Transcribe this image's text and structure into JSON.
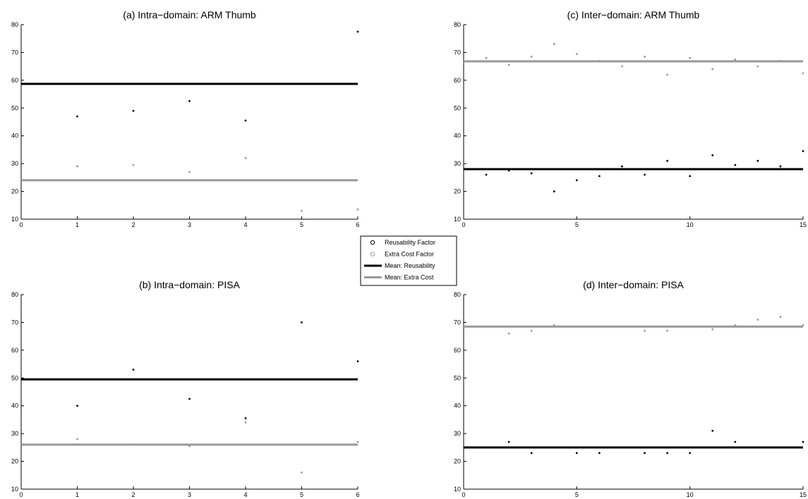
{
  "colors": {
    "reusability": "#000000",
    "extra_cost": "#999999",
    "axis": "#000000",
    "background": "#ffffff"
  },
  "chart_data": [
    {
      "type": "scatter",
      "panel": "a",
      "title": "(a) Intra−domain: ARM Thumb",
      "xlim": [
        0,
        6
      ],
      "ylim": [
        10,
        80
      ],
      "xticks": [
        0,
        1,
        2,
        3,
        4,
        5,
        6
      ],
      "yticks": [
        10,
        20,
        30,
        40,
        50,
        60,
        70,
        80
      ],
      "grid": false,
      "series": [
        {
          "key": "reusability",
          "x": [
            1,
            2,
            3,
            4,
            6
          ],
          "y": [
            47,
            49,
            52.5,
            45.5,
            77.5
          ]
        },
        {
          "key": "extra_cost",
          "x": [
            1,
            2,
            3,
            4,
            5,
            6
          ],
          "y": [
            29,
            29.5,
            27,
            32,
            13,
            13.5
          ]
        }
      ],
      "mean_lines": [
        {
          "key": "mean_reusability",
          "y": 58.7
        },
        {
          "key": "mean_extra_cost",
          "y": 24
        }
      ]
    },
    {
      "type": "scatter",
      "panel": "b",
      "title": "(b) Intra−domain: PISA",
      "xlim": [
        0,
        6
      ],
      "ylim": [
        10,
        80
      ],
      "xticks": [
        0,
        1,
        2,
        3,
        4,
        5,
        6
      ],
      "yticks": [
        10,
        20,
        30,
        40,
        50,
        60,
        70,
        80
      ],
      "grid": false,
      "series": [
        {
          "key": "reusability",
          "x": [
            1,
            2,
            3,
            4,
            5,
            6
          ],
          "y": [
            40,
            53,
            42.5,
            35.5,
            70,
            56
          ]
        },
        {
          "key": "extra_cost",
          "x": [
            1,
            2,
            3,
            4,
            5,
            6
          ],
          "y": [
            28,
            26,
            25.5,
            34,
            16,
            27
          ]
        }
      ],
      "mean_lines": [
        {
          "key": "mean_reusability",
          "y": 49.5
        },
        {
          "key": "mean_extra_cost",
          "y": 26
        }
      ]
    },
    {
      "type": "scatter",
      "panel": "c",
      "title": "(c) Inter−domain: ARM Thumb",
      "xlim": [
        0,
        15
      ],
      "ylim": [
        10,
        80
      ],
      "xticks": [
        0,
        5,
        10,
        15
      ],
      "yticks": [
        10,
        20,
        30,
        40,
        50,
        60,
        70,
        80
      ],
      "grid": false,
      "series": [
        {
          "key": "reusability",
          "x": [
            1,
            2,
            3,
            4,
            5,
            6,
            7,
            8,
            9,
            10,
            11,
            12,
            13,
            14,
            15
          ],
          "y": [
            26,
            27.5,
            26.5,
            20,
            24,
            25.5,
            29,
            26,
            31,
            25.5,
            33,
            29.5,
            31,
            29,
            34.5
          ]
        },
        {
          "key": "extra_cost",
          "x": [
            1,
            2,
            3,
            4,
            5,
            6,
            7,
            8,
            9,
            10,
            11,
            12,
            13,
            14,
            15
          ],
          "y": [
            68,
            65.5,
            68.5,
            73,
            69.5,
            67,
            65,
            68.5,
            62,
            68,
            64,
            67.5,
            65,
            67,
            62.5
          ]
        }
      ],
      "mean_lines": [
        {
          "key": "mean_reusability",
          "y": 28
        },
        {
          "key": "mean_extra_cost",
          "y": 66.8
        }
      ]
    },
    {
      "type": "scatter",
      "panel": "d",
      "title": "(d) Inter−domain: PISA",
      "xlim": [
        0,
        15
      ],
      "ylim": [
        10,
        80
      ],
      "xticks": [
        0,
        5,
        10,
        15
      ],
      "yticks": [
        10,
        20,
        30,
        40,
        50,
        60,
        70,
        80
      ],
      "grid": false,
      "series": [
        {
          "key": "reusability",
          "x": [
            2,
            3,
            5,
            6,
            8,
            9,
            10,
            11,
            12,
            15
          ],
          "y": [
            27,
            23,
            23,
            23,
            23,
            23,
            23,
            31,
            27,
            27
          ]
        },
        {
          "key": "extra_cost",
          "x": [
            2,
            3,
            4,
            5,
            6,
            7,
            8,
            9,
            10,
            11,
            12,
            13,
            14,
            15
          ],
          "y": [
            66,
            67,
            69,
            68.5,
            68.5,
            68.5,
            67,
            67,
            68.5,
            67.5,
            69,
            71,
            72,
            69
          ]
        }
      ],
      "mean_lines": [
        {
          "key": "mean_reusability",
          "y": 25
        },
        {
          "key": "mean_extra_cost",
          "y": 68.5
        }
      ]
    }
  ],
  "legend": {
    "placement": "center",
    "items": [
      {
        "key": "reusability",
        "label": "Reusability Factor",
        "kind": "marker"
      },
      {
        "key": "extra_cost",
        "label": "Extra Cost Factor",
        "kind": "marker"
      },
      {
        "key": "mean_reusability",
        "label": "Mean: Reusability",
        "kind": "line"
      },
      {
        "key": "mean_extra_cost",
        "label": "Mean: Extra Cost",
        "kind": "line"
      }
    ]
  }
}
